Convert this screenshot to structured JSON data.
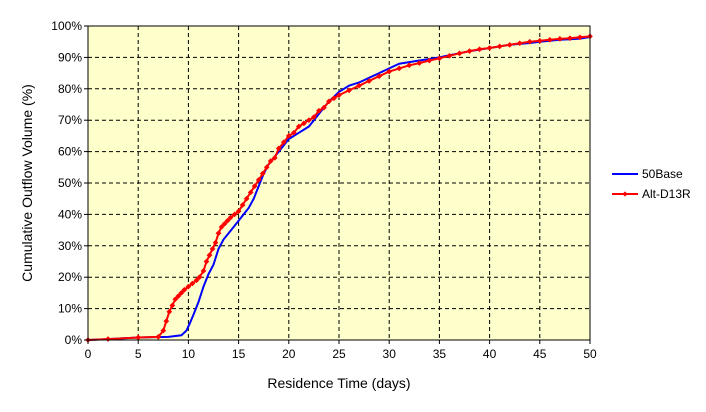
{
  "chart_data": {
    "type": "line",
    "title": "",
    "xlabel": "Residence Time (days)",
    "ylabel": "Cumulative Outflow Volume  (%)",
    "xlim": [
      0,
      50
    ],
    "ylim": [
      0,
      100
    ],
    "x_ticks": [
      0,
      5,
      10,
      15,
      20,
      25,
      30,
      35,
      40,
      45,
      50
    ],
    "y_ticks": [
      0,
      10,
      20,
      30,
      40,
      50,
      60,
      70,
      80,
      90,
      100
    ],
    "x_tick_labels": [
      "0",
      "5",
      "10",
      "15",
      "20",
      "25",
      "30",
      "35",
      "40",
      "45",
      "50"
    ],
    "y_tick_labels": [
      "0%",
      "10%",
      "20%",
      "30%",
      "40%",
      "50%",
      "60%",
      "70%",
      "80%",
      "90%",
      "100%"
    ],
    "grid": true,
    "legend_position": "right",
    "colors": {
      "plot_background": "#ffffcc",
      "grid": "#000000"
    },
    "series": [
      {
        "name": "50Base",
        "color": "#0000ff",
        "marker": "none",
        "x": [
          0,
          2,
          5,
          8,
          9.3,
          9.8,
          10.1,
          10.5,
          11,
          11.5,
          12,
          12.5,
          13,
          13.5,
          14,
          14.5,
          15,
          15.5,
          16,
          16.5,
          17,
          17.5,
          18,
          18.5,
          19,
          19.5,
          20,
          20.5,
          21,
          21.5,
          22,
          22.5,
          23,
          24,
          25,
          26,
          27,
          28,
          29,
          30,
          31,
          32,
          33,
          34,
          35,
          36,
          37,
          38,
          39,
          40,
          41,
          42,
          43,
          44,
          45,
          46,
          47,
          48,
          49,
          50
        ],
        "y": [
          0,
          0.3,
          0.8,
          1,
          1.5,
          3,
          5,
          8,
          12,
          17,
          21,
          24,
          29,
          32,
          34,
          36,
          38,
          40,
          42,
          45,
          49,
          53,
          56,
          58,
          60,
          62,
          64,
          65,
          66,
          67,
          68,
          70,
          72,
          76,
          79,
          81,
          82,
          83.5,
          85,
          86.5,
          88,
          88.5,
          89,
          89.5,
          90,
          90.7,
          91.3,
          92,
          92.5,
          93,
          93.5,
          94,
          94.3,
          94.6,
          95,
          95.3,
          95.6,
          95.8,
          96,
          96.5
        ]
      },
      {
        "name": "Alt-D13R",
        "color": "#ff0000",
        "marker": "diamond",
        "x": [
          0,
          2,
          5,
          7,
          7.5,
          7.8,
          8.1,
          8.4,
          8.7,
          9,
          9.3,
          9.6,
          10,
          10.4,
          10.8,
          11.1,
          11.5,
          11.8,
          12.1,
          12.4,
          12.7,
          13,
          13.3,
          13.6,
          13.9,
          14.2,
          14.6,
          15,
          15.4,
          15.8,
          16.2,
          16.6,
          17,
          17.4,
          17.8,
          18.2,
          18.6,
          19,
          19.5,
          20,
          20.5,
          21,
          21.5,
          22,
          22.5,
          23,
          23.5,
          24,
          24.5,
          25,
          26,
          27,
          28,
          29,
          30,
          31,
          32,
          33,
          34,
          35,
          36,
          37,
          38,
          39,
          40,
          41,
          42,
          43,
          44,
          45,
          46,
          47,
          48,
          49,
          50
        ],
        "y": [
          0,
          0.3,
          0.8,
          1,
          3,
          6,
          9,
          11,
          13,
          14,
          15,
          16,
          17,
          18,
          19,
          20,
          22,
          25,
          27,
          29,
          31,
          34,
          36,
          37,
          38,
          39,
          40,
          41,
          43,
          45,
          47,
          49,
          51,
          53,
          55,
          57,
          58,
          61,
          63,
          65,
          66,
          68,
          69,
          70,
          71,
          73,
          74,
          76,
          77,
          78,
          79.5,
          81,
          82.5,
          84,
          85.5,
          86.5,
          87.5,
          88.2,
          89,
          89.7,
          90.5,
          91.3,
          92,
          92.6,
          93,
          93.5,
          94,
          94.5,
          95,
          95.3,
          95.6,
          95.9,
          96.1,
          96.4,
          96.7
        ]
      }
    ]
  }
}
